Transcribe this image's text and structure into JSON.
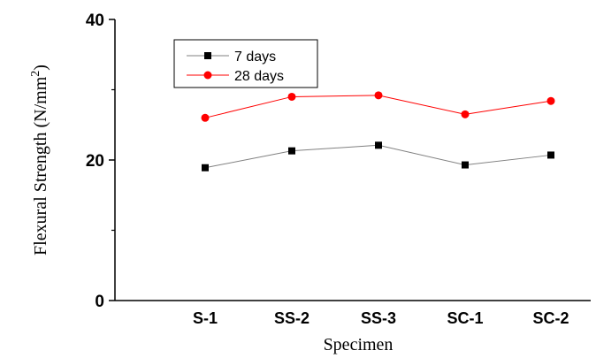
{
  "chart_data": {
    "type": "line",
    "categories": [
      "S-1",
      "SS-2",
      "SS-3",
      "SC-1",
      "SC-2"
    ],
    "series": [
      {
        "name": "7 days",
        "values": [
          18.9,
          21.3,
          22.1,
          19.3,
          20.7
        ],
        "color": "#000000",
        "line_color": "#808080",
        "marker": "square"
      },
      {
        "name": "28 days",
        "values": [
          26.0,
          29.0,
          29.2,
          26.5,
          28.4
        ],
        "color": "#ff0000",
        "line_color": "#ff0000",
        "marker": "circle"
      }
    ],
    "title": "",
    "xlabel": "Specimen",
    "ylabel_main": "Flexural Strength (N/mm",
    "ylabel_sup": "2",
    "ylabel_end": ")",
    "ylim": [
      0,
      40
    ],
    "yticks": [
      "0",
      "20",
      "40"
    ],
    "grid": false,
    "legend_position": "top-left"
  }
}
